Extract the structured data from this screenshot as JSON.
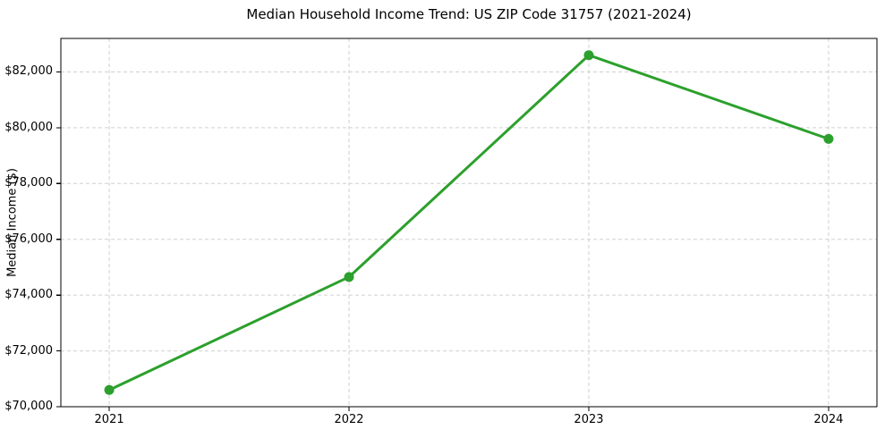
{
  "chart_data": {
    "type": "line",
    "title": "Median Household Income Trend: US ZIP Code 31757 (2021-2024)",
    "xlabel": "",
    "ylabel": "Median Income ($)",
    "categories": [
      "2021",
      "2022",
      "2023",
      "2024"
    ],
    "values": [
      70600,
      74650,
      82600,
      79600
    ],
    "ylim": [
      70000,
      83200
    ],
    "y_ticks": [
      70000,
      72000,
      74000,
      76000,
      78000,
      80000,
      82000
    ],
    "y_tick_labels": [
      "$70,000",
      "$72,000",
      "$74,000",
      "$76,000",
      "$78,000",
      "$80,000",
      "$82,000"
    ],
    "grid": "dashed-both-axes",
    "legend_position": "none",
    "line_color": "#2ca02c",
    "marker": "circle",
    "marker_color": "#2ca02c",
    "grid_color": "#d0d0d0",
    "spine_color": "#000000",
    "background_color": "#ffffff"
  }
}
